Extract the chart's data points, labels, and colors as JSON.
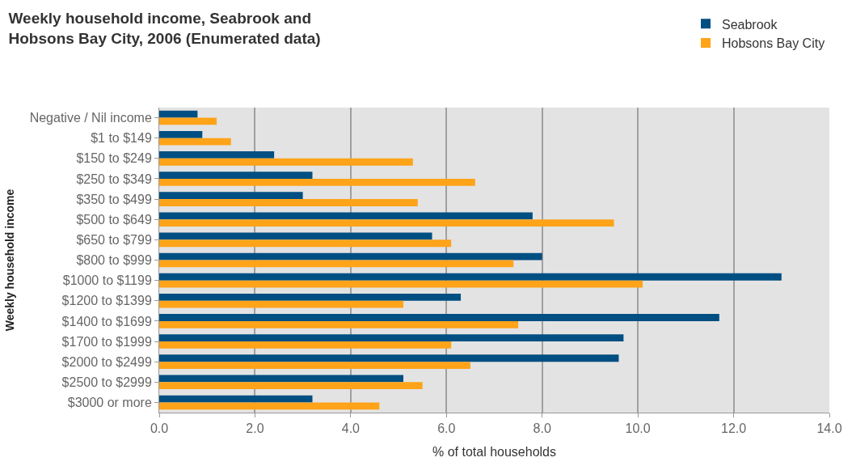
{
  "chart_data": {
    "type": "bar",
    "orientation": "horizontal",
    "title": "Weekly household income, Seabrook and Hobsons Bay City, 2006 (Enumerated data)",
    "xlabel": "% of total households",
    "ylabel": "Weekly household income",
    "categories": [
      "Negative / Nil income",
      "$1 to $149",
      "$150 to $249",
      "$250 to $349",
      "$350 to $499",
      "$500 to $649",
      "$650 to $799",
      "$800 to $999",
      "$1000 to $1199",
      "$1200 to $1399",
      "$1400 to $1699",
      "$1700 to $1999",
      "$2000 to $2499",
      "$2500 to $2999",
      "$3000 or more"
    ],
    "series": [
      {
        "name": "Seabrook",
        "color": "#004f82",
        "values": [
          0.8,
          0.9,
          2.4,
          3.2,
          3.0,
          7.8,
          5.7,
          8.0,
          13.0,
          6.3,
          11.7,
          9.7,
          9.6,
          5.1,
          3.2
        ]
      },
      {
        "name": "Hobsons Bay City",
        "color": "#ffa319",
        "values": [
          1.2,
          1.5,
          5.3,
          6.6,
          5.4,
          9.5,
          6.1,
          7.4,
          10.1,
          5.1,
          7.5,
          6.1,
          6.5,
          5.5,
          4.6
        ]
      }
    ],
    "xlim": [
      0,
      14
    ],
    "xticks": [
      {
        "value": 0,
        "label": "0.0"
      },
      {
        "value": 2,
        "label": "2.0"
      },
      {
        "value": 4,
        "label": "4.0"
      },
      {
        "value": 6,
        "label": "6.0"
      },
      {
        "value": 8,
        "label": "8.0"
      },
      {
        "value": 10,
        "label": "10.0"
      },
      {
        "value": 12,
        "label": "12.0"
      },
      {
        "value": 14,
        "label": "14.0"
      }
    ],
    "grid": "x",
    "legend": "top right"
  }
}
